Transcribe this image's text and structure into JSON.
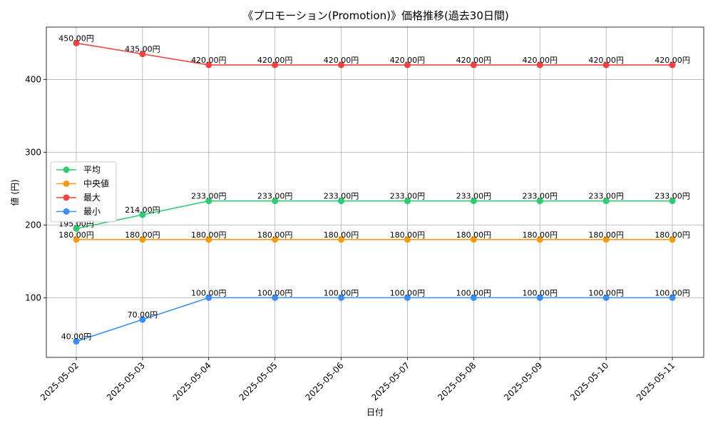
{
  "chart_data": {
    "type": "line",
    "title": "《プロモーション(Promotion)》価格推移(過去30日間)",
    "xlabel": "日付",
    "ylabel": "値 (円)",
    "categories": [
      "2025-05-02",
      "2025-05-03",
      "2025-05-04",
      "2025-05-05",
      "2025-05-06",
      "2025-05-07",
      "2025-05-08",
      "2025-05-09",
      "2025-05-10",
      "2025-05-11"
    ],
    "ylim": [
      18,
      472
    ],
    "yticks": [
      100,
      200,
      300,
      400
    ],
    "grid": true,
    "legend_position": "center-left",
    "label_suffix": "円",
    "series": [
      {
        "name": "平均",
        "color": "#2ecc71",
        "values": [
          195,
          214,
          233,
          233,
          233,
          233,
          233,
          233,
          233,
          233
        ]
      },
      {
        "name": "中央値",
        "color": "#f39c12",
        "values": [
          180,
          180,
          180,
          180,
          180,
          180,
          180,
          180,
          180,
          180
        ]
      },
      {
        "name": "最大",
        "color": "#ef4444",
        "values": [
          450,
          435,
          420,
          420,
          420,
          420,
          420,
          420,
          420,
          420
        ]
      },
      {
        "name": "最小",
        "color": "#3b8ef5",
        "values": [
          40,
          70,
          100,
          100,
          100,
          100,
          100,
          100,
          100,
          100
        ]
      }
    ]
  }
}
